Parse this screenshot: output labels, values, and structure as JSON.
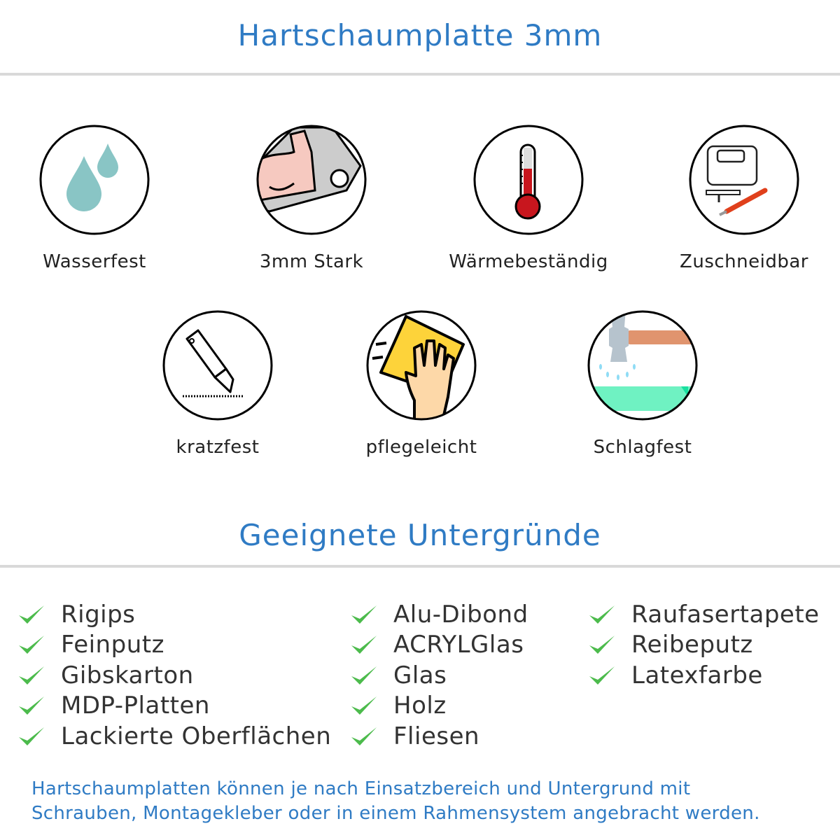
{
  "header": {
    "title": "Hartschaumplatte 3mm"
  },
  "features": [
    {
      "label": "Wasserfest",
      "icon": "water-drops-icon"
    },
    {
      "label": "3mm Stark",
      "icon": "strong-arm-icon"
    },
    {
      "label": "Wärmebeständig",
      "icon": "thermometer-icon"
    },
    {
      "label": "Zuschneidbar",
      "icon": "jigsaw-knife-icon"
    },
    {
      "label": "kratzfest",
      "icon": "cutter-knife-icon"
    },
    {
      "label": "pflegeleicht",
      "icon": "cleaning-hand-icon"
    },
    {
      "label": "Schlagfest",
      "icon": "hammer-icon"
    }
  ],
  "section": {
    "title": "Geeignete Untergründe"
  },
  "surfaces": {
    "col1": [
      "Rigips",
      "Feinputz",
      "Gibskarton",
      "MDP-Platten",
      "Lackierte Oberflächen"
    ],
    "col2": [
      "Alu-Dibond",
      "ACRYLGlas",
      "Glas",
      "Holz",
      "Fliesen"
    ],
    "col3": [
      "Raufasertapete",
      "Reibeputz",
      "Latexfarbe"
    ]
  },
  "footer": {
    "line1": "Hartschaumplatten können je nach Einsatzbereich und Untergrund mit",
    "line2": "Schrauben, Montagekleber oder in einem Rahmensystem angebracht werden."
  },
  "colors": {
    "accent": "#2f7bc4",
    "check": "#4cbb4c",
    "text": "#333333"
  }
}
